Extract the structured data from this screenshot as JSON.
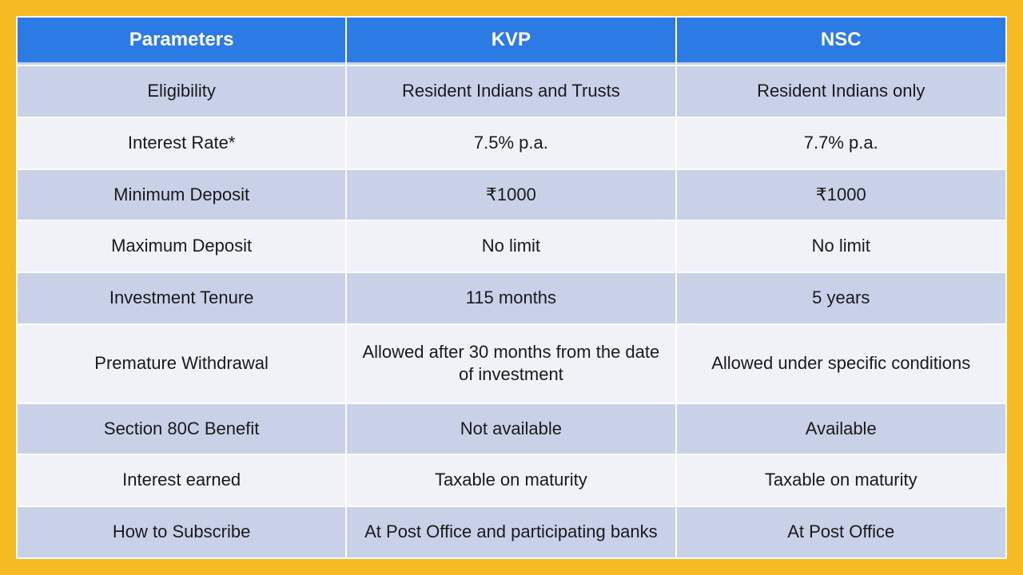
{
  "table": {
    "columns": [
      "Parameters",
      "KVP",
      "NSC"
    ],
    "rows": [
      [
        "Eligibility",
        "Resident Indians and Trusts",
        "Resident Indians only"
      ],
      [
        "Interest Rate*",
        "7.5% p.a.",
        "7.7% p.a."
      ],
      [
        "Minimum Deposit",
        "₹1000",
        "₹1000"
      ],
      [
        "Maximum Deposit",
        "No limit",
        "No limit"
      ],
      [
        "Investment Tenure",
        "115 months",
        "5 years"
      ],
      [
        "Premature Withdrawal",
        "Allowed after 30 months from the date of investment",
        "Allowed under specific conditions"
      ],
      [
        "Section 80C Benefit",
        "Not available",
        "Available"
      ],
      [
        "Interest earned",
        "Taxable on maturity",
        "Taxable on maturity"
      ],
      [
        "How to Subscribe",
        "At Post Office and participating banks",
        "At Post Office"
      ]
    ],
    "header_bg": "#2c7be5",
    "header_text_color": "#ffffff",
    "row_odd_bg": "#c9d1e8",
    "row_even_bg": "#f0f2f8",
    "page_bg": "#f6bb22",
    "font_size_header": 24,
    "font_size_cell": 22,
    "col_widths_pct": [
      33.3,
      33.3,
      33.4
    ]
  }
}
